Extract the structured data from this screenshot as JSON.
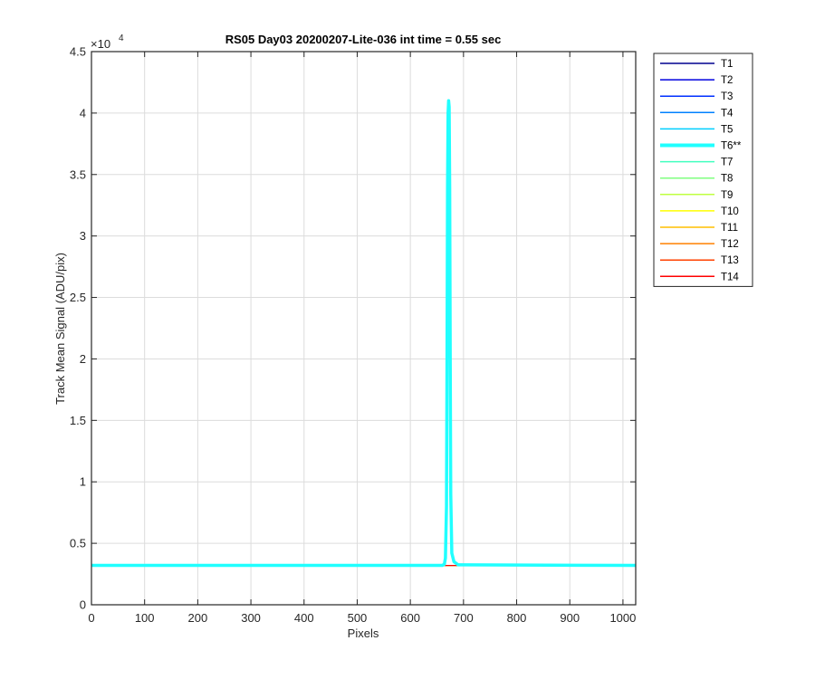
{
  "chart_data": {
    "type": "line",
    "title": "RS05 Day03 20200207-Lite-036 int time = 0.55 sec",
    "xlabel": "Pixels",
    "ylabel": "Track Mean Signal (ADU/pix)",
    "y_exponent_label": "×10",
    "y_exponent": "4",
    "xlim": [
      0,
      1024
    ],
    "ylim": [
      0,
      45000
    ],
    "xticks": [
      0,
      100,
      200,
      300,
      400,
      500,
      600,
      700,
      800,
      900,
      1000
    ],
    "xtick_labels": [
      "0",
      "100",
      "200",
      "300",
      "400",
      "500",
      "600",
      "700",
      "800",
      "900",
      "1000"
    ],
    "yticks": [
      0,
      5000,
      10000,
      15000,
      20000,
      25000,
      30000,
      35000,
      40000,
      45000
    ],
    "ytick_labels": [
      "0",
      "0.5",
      "1",
      "1.5",
      "2",
      "2.5",
      "3",
      "3.5",
      "4",
      "4.5"
    ],
    "grid": true,
    "legend_placement": "outside-top-right",
    "series": [
      {
        "name": "T1",
        "color": "#00008f",
        "baseline": 3200,
        "highlight": false
      },
      {
        "name": "T2",
        "color": "#0000df",
        "baseline": 3200,
        "highlight": false
      },
      {
        "name": "T3",
        "color": "#0030ff",
        "baseline": 3200,
        "highlight": false
      },
      {
        "name": "T4",
        "color": "#0080ff",
        "baseline": 3200,
        "highlight": false
      },
      {
        "name": "T5",
        "color": "#00cfff",
        "baseline": 3200,
        "highlight": false
      },
      {
        "name": "T6**",
        "color": "#20ffff",
        "baseline": 3200,
        "highlight": true,
        "peak": [
          [
            0,
            3200
          ],
          [
            660,
            3200
          ],
          [
            664,
            3300
          ],
          [
            666,
            3800
          ],
          [
            668,
            8000
          ],
          [
            669,
            20000
          ],
          [
            670,
            34000
          ],
          [
            671,
            40000
          ],
          [
            672,
            41000
          ],
          [
            673,
            40500
          ],
          [
            674,
            34000
          ],
          [
            675,
            20000
          ],
          [
            676,
            9000
          ],
          [
            678,
            4200
          ],
          [
            682,
            3500
          ],
          [
            690,
            3250
          ],
          [
            1024,
            3200
          ]
        ]
      },
      {
        "name": "T7",
        "color": "#40ffbf",
        "baseline": 3200,
        "highlight": false
      },
      {
        "name": "T8",
        "color": "#80ff80",
        "baseline": 3200,
        "highlight": false
      },
      {
        "name": "T9",
        "color": "#bfff40",
        "baseline": 3200,
        "highlight": false
      },
      {
        "name": "T10",
        "color": "#ffff00",
        "baseline": 3200,
        "highlight": false
      },
      {
        "name": "T11",
        "color": "#ffbf00",
        "baseline": 3200,
        "highlight": false
      },
      {
        "name": "T12",
        "color": "#ff8000",
        "baseline": 3200,
        "highlight": false
      },
      {
        "name": "T13",
        "color": "#ff4000",
        "baseline": 3200,
        "highlight": false
      },
      {
        "name": "T14",
        "color": "#ff0000",
        "baseline": 3200,
        "highlight": false
      }
    ]
  }
}
